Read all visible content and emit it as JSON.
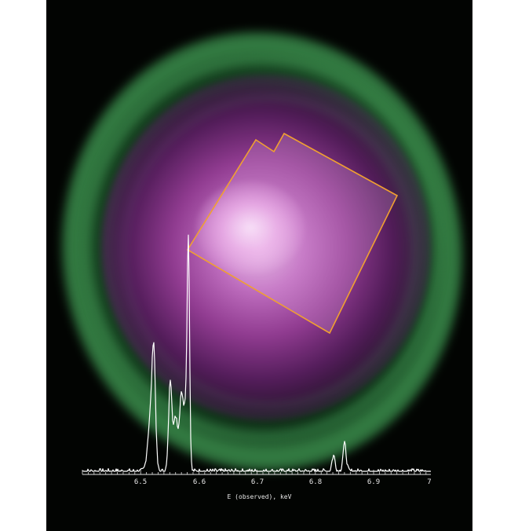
{
  "image": {
    "description_name": "galaxy-cluster-xray-composite",
    "colors": {
      "background": "#020402",
      "outer_gas": "#46aa5a",
      "inner_gas": "#b450b4",
      "core": "#fff0ff",
      "region_outline": "#f0a030",
      "spectrum": "#ffffff"
    }
  },
  "spectrum": {
    "x_axis_label": "E (observed), keV",
    "ticks": [
      "6.5",
      "6.6",
      "6.7",
      "6.8",
      "6.9",
      "7"
    ]
  }
}
